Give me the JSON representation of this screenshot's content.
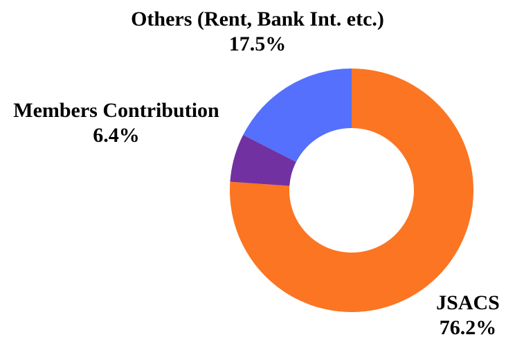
{
  "chart_data": {
    "type": "donut",
    "categories": [
      "JSACS",
      "Members Contribution",
      "Others (Rent, Bank Int. etc.)"
    ],
    "values": [
      76.2,
      6.4,
      17.5
    ],
    "value_labels": [
      "76.2%",
      "6.4%",
      "17.5%"
    ],
    "colors": [
      "#fb7522",
      "#7131a0",
      "#5470fd"
    ]
  }
}
